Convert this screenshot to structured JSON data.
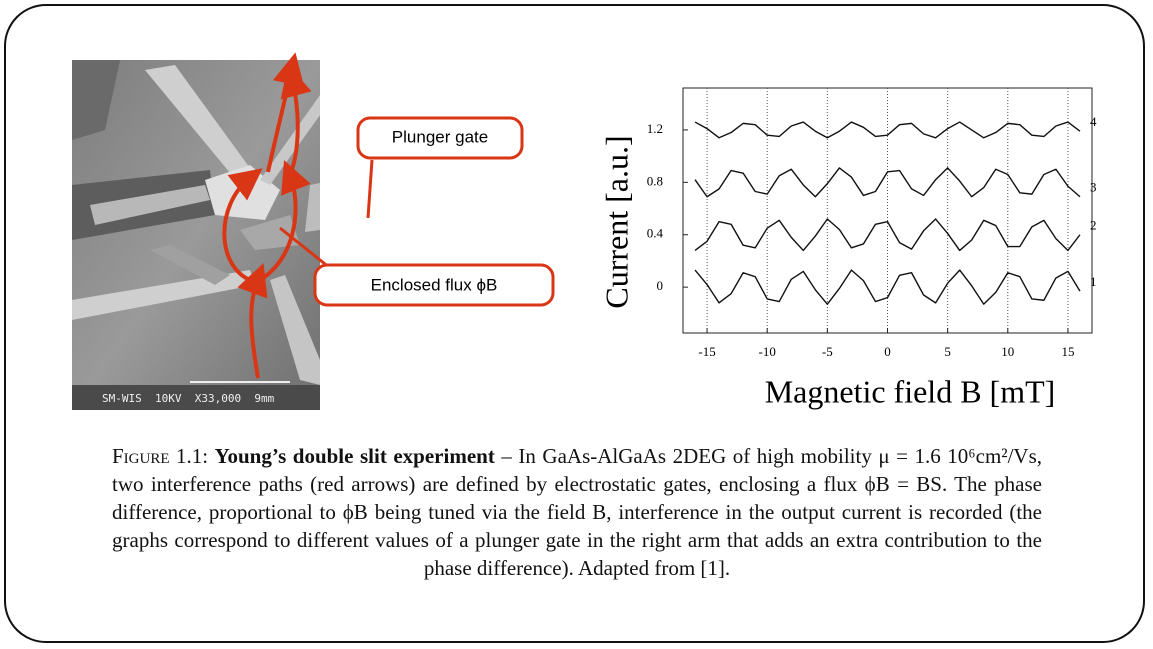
{
  "image": {
    "labels": [
      "Plunger gate",
      "Enclosed flux ϕB"
    ],
    "scale_bar": "SM-WIS  10KV  X33,000  9mm"
  },
  "chart_data": {
    "type": "line",
    "xlabel": "Magnetic field B    [mT]",
    "ylabel": "Current    [a.u.]",
    "x": [
      -16,
      -15,
      -14,
      -13,
      -12,
      -11,
      -10,
      -9,
      -8,
      -7,
      -6,
      -5,
      -4,
      -3,
      -2,
      -1,
      0,
      1,
      2,
      3,
      4,
      5,
      6,
      7,
      8,
      9,
      10,
      11,
      12,
      13,
      14,
      15,
      16
    ],
    "series": [
      {
        "name": "1",
        "color": "#111111",
        "values": [
          0.13,
          0.02,
          -0.12,
          -0.05,
          0.11,
          0.08,
          -0.09,
          -0.11,
          0.06,
          0.12,
          -0.02,
          -0.13,
          -0.01,
          0.13,
          0.05,
          -0.11,
          -0.08,
          0.09,
          0.11,
          -0.06,
          -0.12,
          0.03,
          0.13,
          0.01,
          -0.13,
          -0.04,
          0.11,
          0.08,
          -0.09,
          -0.1,
          0.07,
          0.12,
          -0.03
        ]
      },
      {
        "name": "2",
        "color": "#111111",
        "values": [
          0.28,
          0.35,
          0.5,
          0.48,
          0.32,
          0.3,
          0.45,
          0.51,
          0.38,
          0.28,
          0.39,
          0.52,
          0.44,
          0.3,
          0.33,
          0.48,
          0.5,
          0.34,
          0.29,
          0.43,
          0.52,
          0.41,
          0.28,
          0.36,
          0.51,
          0.47,
          0.31,
          0.31,
          0.46,
          0.51,
          0.37,
          0.28,
          0.4
        ]
      },
      {
        "name": "3",
        "color": "#111111",
        "values": [
          0.82,
          0.69,
          0.75,
          0.89,
          0.87,
          0.73,
          0.71,
          0.85,
          0.9,
          0.78,
          0.69,
          0.79,
          0.91,
          0.84,
          0.7,
          0.73,
          0.88,
          0.89,
          0.75,
          0.7,
          0.82,
          0.91,
          0.81,
          0.69,
          0.76,
          0.9,
          0.86,
          0.72,
          0.71,
          0.86,
          0.9,
          0.77,
          0.69
        ]
      },
      {
        "name": "4",
        "color": "#111111",
        "values": [
          1.26,
          1.21,
          1.14,
          1.18,
          1.25,
          1.24,
          1.16,
          1.15,
          1.23,
          1.26,
          1.19,
          1.14,
          1.19,
          1.26,
          1.22,
          1.15,
          1.16,
          1.24,
          1.25,
          1.17,
          1.14,
          1.21,
          1.26,
          1.2,
          1.14,
          1.18,
          1.25,
          1.24,
          1.16,
          1.15,
          1.23,
          1.26,
          1.19
        ]
      }
    ],
    "xlim": [
      -17,
      17
    ],
    "xticks": [
      -15,
      -10,
      -5,
      0,
      5,
      10,
      15
    ],
    "ylim": [
      -0.35,
      1.52
    ],
    "yticks": [
      0,
      0.4,
      0.8,
      1.2
    ],
    "grid": true
  },
  "caption": {
    "label": "Figure 1.1:",
    "title": "Young’s double slit experiment",
    "text": "– In GaAs-AlGaAs 2DEG of high mobility μ = 1.6 10⁶cm²/Vs, two interference paths (red arrows) are defined by electrostatic gates, enclosing a flux ϕB = BS. The phase difference, proportional to ϕB being tuned via the field B, interference in the output current is recorded (the graphs correspond to different values of a plunger gate in the right arm that adds an extra contribution to the phase difference). Adapted from [1]."
  }
}
